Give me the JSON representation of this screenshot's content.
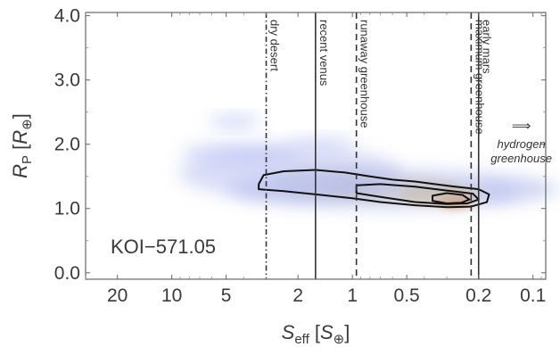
{
  "chart_data": {
    "type": "scatter",
    "description_free": true,
    "xlabel": {
      "main": "S",
      "sub": "eff",
      "unit_open": " [",
      "unit_main": "S",
      "unit_sub": "⊕",
      "unit_close": "]"
    },
    "ylabel": {
      "main": "R",
      "sub": "P",
      "unit_open": " [",
      "unit_main": "R",
      "unit_sub": "⊕",
      "unit_close": "]"
    },
    "x_scale": "log-reversed",
    "xlim": [
      30,
      0.085
    ],
    "ylim": [
      -0.1,
      4.05
    ],
    "x_ticks": [
      {
        "value": 20,
        "label": "20"
      },
      {
        "value": 10,
        "label": "10"
      },
      {
        "value": 5,
        "label": "5"
      },
      {
        "value": 2,
        "label": "2"
      },
      {
        "value": 1,
        "label": "1"
      },
      {
        "value": 0.5,
        "label": "0.5"
      },
      {
        "value": 0.2,
        "label": "0.2"
      },
      {
        "value": 0.1,
        "label": "0.1"
      }
    ],
    "y_ticks": [
      {
        "value": 0.0,
        "label": "0.0"
      },
      {
        "value": 1.0,
        "label": "1.0"
      },
      {
        "value": 2.0,
        "label": "2.0"
      },
      {
        "value": 3.0,
        "label": "3.0"
      },
      {
        "value": 4.0,
        "label": "4.0"
      }
    ],
    "vertical_lines": [
      {
        "value": 3.0,
        "label": "dry desert",
        "style": "dashdot"
      },
      {
        "value": 1.6,
        "label": "recent venus",
        "style": "solid"
      },
      {
        "value": 0.95,
        "label": "runaway greenhouse",
        "style": "dashed"
      },
      {
        "value": 0.22,
        "label": "maximum greenhouse",
        "style": "dashed"
      },
      {
        "value": 0.2,
        "label": "early mars",
        "style": "solid"
      }
    ],
    "annotation": {
      "arrow": "⟹",
      "lines": [
        "hydrogen",
        "greenhouse"
      ],
      "x": 0.13,
      "y": 1.8
    },
    "object_label": "KOI−571.05",
    "density_blobs": [
      {
        "x": 0.27,
        "y": 1.14,
        "sx": 0.08,
        "sy": 0.07,
        "color": "#e8833a",
        "opacity": 0.8
      },
      {
        "x": 0.33,
        "y": 1.22,
        "sx": 0.2,
        "sy": 0.1,
        "color": "#eec45a",
        "opacity": 0.55
      },
      {
        "x": 0.6,
        "y": 1.3,
        "sx": 0.35,
        "sy": 0.15,
        "color": "#e6c77a",
        "opacity": 0.35
      },
      {
        "x": 1.4,
        "y": 1.42,
        "sx": 0.28,
        "sy": 0.2,
        "color": "#bcb8a8",
        "opacity": 0.35
      },
      {
        "x": 0.6,
        "y": 1.3,
        "sx": 0.9,
        "sy": 0.24,
        "color": "#aab2e8",
        "opacity": 0.55
      },
      {
        "x": 2.2,
        "y": 1.55,
        "sx": 0.6,
        "sy": 0.35,
        "color": "#b5bdf0",
        "opacity": 0.5
      },
      {
        "x": 4.2,
        "y": 1.85,
        "sx": 0.3,
        "sy": 0.12,
        "color": "#b8c0f2",
        "opacity": 0.55
      },
      {
        "x": 4.5,
        "y": 2.35,
        "sx": 0.12,
        "sy": 0.05,
        "color": "#b8c0f2",
        "opacity": 0.6
      },
      {
        "x": 1.5,
        "y": 2.0,
        "sx": 0.18,
        "sy": 0.06,
        "color": "#b8c0f2",
        "opacity": 0.5
      },
      {
        "x": 0.16,
        "y": 1.25,
        "sx": 0.1,
        "sy": 0.08,
        "color": "#b8c0f2",
        "opacity": 0.5
      }
    ],
    "contours": [
      {
        "level": "outer",
        "points": [
          [
            3.3,
            1.38
          ],
          [
            3.1,
            1.52
          ],
          [
            2.4,
            1.58
          ],
          [
            1.6,
            1.6
          ],
          [
            1.1,
            1.56
          ],
          [
            0.8,
            1.5
          ],
          [
            0.6,
            1.45
          ],
          [
            0.45,
            1.42
          ],
          [
            0.35,
            1.38
          ],
          [
            0.27,
            1.34
          ],
          [
            0.2,
            1.3
          ],
          [
            0.175,
            1.22
          ],
          [
            0.18,
            1.1
          ],
          [
            0.22,
            1.03
          ],
          [
            0.3,
            1.02
          ],
          [
            0.45,
            1.05
          ],
          [
            0.7,
            1.1
          ],
          [
            1.0,
            1.16
          ],
          [
            1.6,
            1.22
          ],
          [
            2.4,
            1.27
          ],
          [
            3.3,
            1.3
          ]
        ]
      },
      {
        "level": "middle",
        "points": [
          [
            0.95,
            1.36
          ],
          [
            0.7,
            1.38
          ],
          [
            0.45,
            1.34
          ],
          [
            0.3,
            1.28
          ],
          [
            0.215,
            1.23
          ],
          [
            0.2,
            1.14
          ],
          [
            0.23,
            1.08
          ],
          [
            0.3,
            1.07
          ],
          [
            0.45,
            1.1
          ],
          [
            0.7,
            1.18
          ],
          [
            0.95,
            1.24
          ]
        ]
      },
      {
        "level": "inner",
        "points": [
          [
            0.36,
            1.2
          ],
          [
            0.3,
            1.24
          ],
          [
            0.245,
            1.21
          ],
          [
            0.225,
            1.14
          ],
          [
            0.25,
            1.09
          ],
          [
            0.3,
            1.08
          ],
          [
            0.36,
            1.12
          ]
        ]
      }
    ]
  }
}
